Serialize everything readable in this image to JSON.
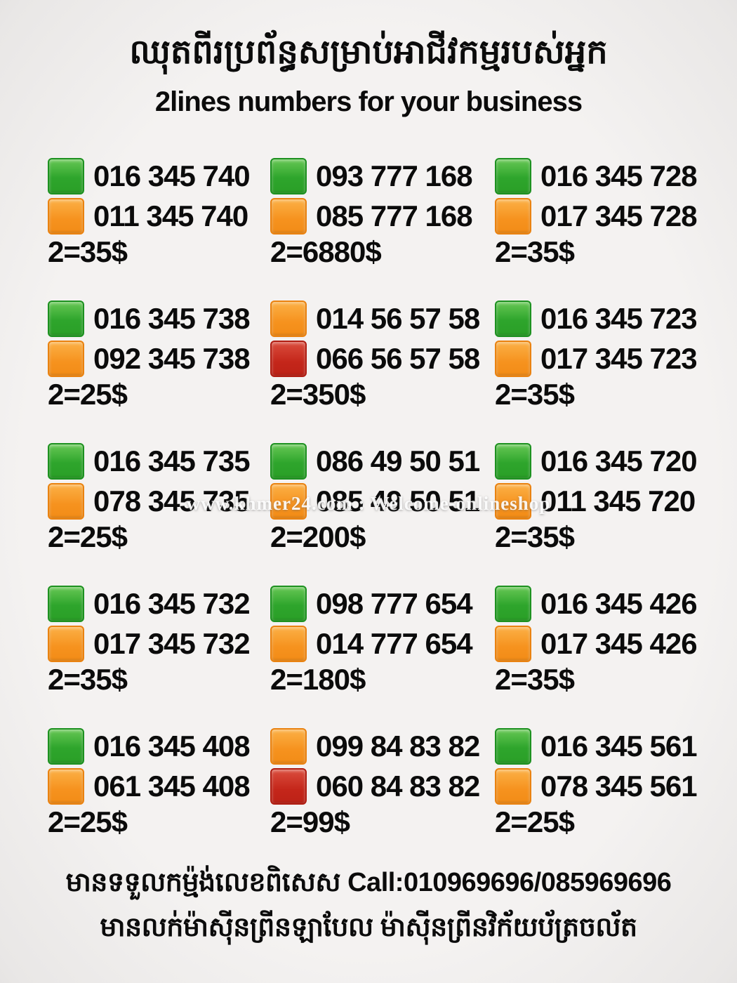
{
  "header": {
    "title_khmer": "ឈុតពីរប្រព័ន្ធសម្រាប់អាជីវកម្មរបស់អ្នក",
    "subtitle": "2lines numbers for your business"
  },
  "watermark": "www.khmer24.com : Welcome-onlineshop",
  "colors": {
    "green": "#2ea52c",
    "orange": "#f6921e",
    "red": "#c4261a"
  },
  "grid": {
    "cells": [
      {
        "lines": [
          {
            "color": "green",
            "number": "016 345 740"
          },
          {
            "color": "orange",
            "number": "011 345 740"
          }
        ],
        "price": "2=35$"
      },
      {
        "lines": [
          {
            "color": "green",
            "number": "093 777 168"
          },
          {
            "color": "orange",
            "number": "085 777 168"
          }
        ],
        "price": "2=6880$"
      },
      {
        "lines": [
          {
            "color": "green",
            "number": "016 345 728"
          },
          {
            "color": "orange",
            "number": "017 345 728"
          }
        ],
        "price": "2=35$"
      },
      {
        "lines": [
          {
            "color": "green",
            "number": "016 345 738"
          },
          {
            "color": "orange",
            "number": "092 345 738"
          }
        ],
        "price": "2=25$"
      },
      {
        "lines": [
          {
            "color": "orange",
            "number": "014 56 57 58"
          },
          {
            "color": "red",
            "number": "066 56 57 58"
          }
        ],
        "price": "2=350$"
      },
      {
        "lines": [
          {
            "color": "green",
            "number": "016 345 723"
          },
          {
            "color": "orange",
            "number": "017 345 723"
          }
        ],
        "price": "2=35$"
      },
      {
        "lines": [
          {
            "color": "green",
            "number": "016 345 735"
          },
          {
            "color": "orange",
            "number": "078 345 735"
          }
        ],
        "price": "2=25$"
      },
      {
        "lines": [
          {
            "color": "green",
            "number": "086 49 50 51"
          },
          {
            "color": "orange",
            "number": "085 49 50 51"
          }
        ],
        "price": "2=200$"
      },
      {
        "lines": [
          {
            "color": "green",
            "number": "016 345 720"
          },
          {
            "color": "orange",
            "number": "011 345 720"
          }
        ],
        "price": "2=35$"
      },
      {
        "lines": [
          {
            "color": "green",
            "number": "016 345 732"
          },
          {
            "color": "orange",
            "number": "017 345 732"
          }
        ],
        "price": "2=35$"
      },
      {
        "lines": [
          {
            "color": "green",
            "number": "098 777 654"
          },
          {
            "color": "orange",
            "number": "014 777 654"
          }
        ],
        "price": "2=180$"
      },
      {
        "lines": [
          {
            "color": "green",
            "number": "016 345 426"
          },
          {
            "color": "orange",
            "number": "017 345 426"
          }
        ],
        "price": "2=35$"
      },
      {
        "lines": [
          {
            "color": "green",
            "number": "016 345 408"
          },
          {
            "color": "orange",
            "number": "061 345 408"
          }
        ],
        "price": "2=25$"
      },
      {
        "lines": [
          {
            "color": "orange",
            "number": "099 84 83 82"
          },
          {
            "color": "red",
            "number": "060 84 83 82"
          }
        ],
        "price": "2=99$"
      },
      {
        "lines": [
          {
            "color": "green",
            "number": "016 345 561"
          },
          {
            "color": "orange",
            "number": "078 345 561"
          }
        ],
        "price": "2=25$"
      }
    ]
  },
  "footer": {
    "line1": "មានទទួលកម្ម៉ង់លេខពិសេស Call:010969696/085969696",
    "line2": "មានលក់ម៉ាស៊ីនព្រីនឡាបែល ម៉ាស៊ីនព្រីនវិក័យប័ត្រចល័ត"
  }
}
